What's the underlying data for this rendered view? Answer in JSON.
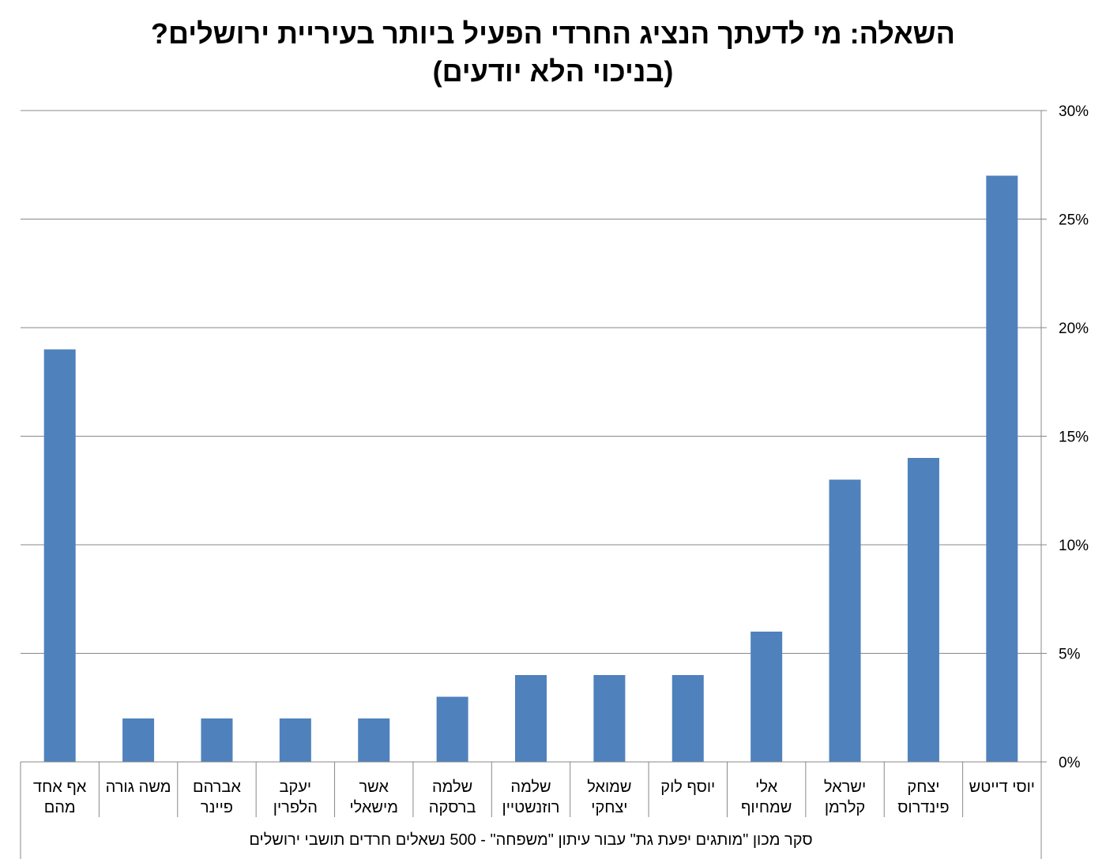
{
  "chart_data": {
    "type": "bar",
    "title": "השאלה: מי לדעתך הנציג החרדי הפעיל ביותר בעיריית ירושלים?",
    "subtitle": "(בניכוי הלא יודעים)",
    "categories": [
      [
        "יוסי דייטש"
      ],
      [
        "יצחק",
        "פינדרוס"
      ],
      [
        "ישראל",
        "קלרמן"
      ],
      [
        "אלי",
        "שמחיוף"
      ],
      [
        "יוסף לוק"
      ],
      [
        "שמואל",
        "יצחקי"
      ],
      [
        "שלמה",
        "רוזנשטיין"
      ],
      [
        "שלמה",
        "ברסקה"
      ],
      [
        "אשר",
        "מישאלי"
      ],
      [
        "יעקב",
        "הלפרין"
      ],
      [
        "אברהם",
        "פיינר"
      ],
      [
        "משה גורה"
      ],
      [
        "אף אחד",
        "מהם"
      ]
    ],
    "values": [
      27,
      14,
      13,
      6,
      4,
      4,
      4,
      3,
      2,
      2,
      2,
      2,
      19
    ],
    "ylim": [
      0,
      30
    ],
    "yticks": [
      0,
      5,
      10,
      15,
      20,
      25,
      30
    ],
    "ytick_suffix": "%",
    "yaxis_side": "right",
    "category_order": "right-to-left",
    "grid": true,
    "bar_color": "#4f81bd",
    "grid_color": "#888888",
    "xlabel": "סקר מכון \"מותגים יפעת גת\" עבור עיתון \"משפחה\" - 500 נשאלים חרדים תושבי ירושלים",
    "ylabel": ""
  }
}
